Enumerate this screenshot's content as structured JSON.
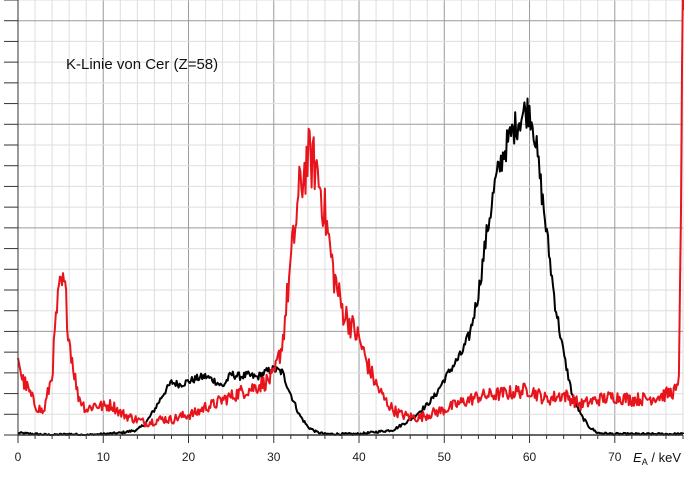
{
  "chart_data": {
    "type": "line",
    "annotation": "K-Linie von Cer (Z=58)",
    "xlabel": {
      "symbol": "E",
      "subscript": "A",
      "unit": " / keV"
    },
    "ylabel": "",
    "xlim": [
      0,
      78
    ],
    "ylim": [
      0,
      430
    ],
    "grid": true,
    "x_ticks": [
      0,
      10,
      20,
      30,
      40,
      50,
      60,
      70
    ],
    "x_tick_labels": [
      "0",
      "10",
      "20",
      "30",
      "40",
      "50",
      "60",
      "70"
    ],
    "colors": {
      "black": "#000000",
      "red": "#e8141c",
      "grid_major": "#9a9a9a",
      "grid_minor": "#dedede"
    },
    "series": [
      {
        "color": "black",
        "x": [
          0,
          2,
          4,
          6,
          8,
          10,
          12,
          14,
          15,
          16,
          17,
          18,
          19,
          20,
          21,
          22,
          23,
          24,
          25,
          26,
          27,
          28,
          29,
          30,
          31,
          32,
          33,
          34,
          35,
          36,
          38,
          40,
          44,
          46,
          48,
          49,
          50,
          51,
          52,
          53,
          54,
          55,
          56,
          57,
          58,
          59,
          59.5,
          60,
          60.5,
          61,
          62,
          63,
          64,
          65,
          66,
          67,
          68,
          70,
          74,
          78
        ],
        "y": [
          2,
          1,
          0,
          1,
          0,
          1,
          2,
          5,
          12,
          25,
          40,
          52,
          50,
          53,
          56,
          58,
          54,
          48,
          60,
          58,
          59,
          57,
          62,
          65,
          62,
          40,
          20,
          8,
          3,
          1,
          1,
          1,
          5,
          15,
          30,
          40,
          55,
          68,
          80,
          100,
          140,
          200,
          250,
          280,
          300,
          315,
          320,
          322,
          305,
          270,
          200,
          130,
          80,
          40,
          20,
          8,
          2,
          1,
          1,
          1
        ]
      },
      {
        "color": "red",
        "x": [
          0,
          0.5,
          1,
          2,
          3,
          4,
          4.5,
          5,
          5.5,
          6,
          7,
          8,
          9,
          10,
          11,
          12,
          13,
          14,
          15,
          16,
          17,
          18,
          19,
          20,
          21,
          22,
          23,
          24,
          25,
          26,
          27,
          28,
          29,
          30,
          31,
          32,
          33,
          34,
          35,
          36,
          37,
          38,
          39,
          40,
          41,
          42,
          43,
          44,
          45,
          46,
          47,
          48,
          50,
          52,
          54,
          56,
          58,
          60,
          62,
          64,
          66,
          68,
          70,
          72,
          74,
          76,
          77.5,
          78
        ],
        "y": [
          80,
          55,
          48,
          30,
          22,
          60,
          120,
          148,
          145,
          95,
          40,
          25,
          30,
          28,
          30,
          22,
          18,
          15,
          12,
          14,
          16,
          15,
          18,
          20,
          22,
          28,
          30,
          35,
          38,
          42,
          45,
          48,
          52,
          58,
          90,
          170,
          240,
          275,
          265,
          220,
          160,
          125,
          110,
          95,
          70,
          50,
          35,
          25,
          20,
          18,
          17,
          20,
          25,
          32,
          38,
          40,
          42,
          45,
          35,
          40,
          30,
          35,
          38,
          35,
          36,
          40,
          45,
          420
        ]
      }
    ]
  }
}
